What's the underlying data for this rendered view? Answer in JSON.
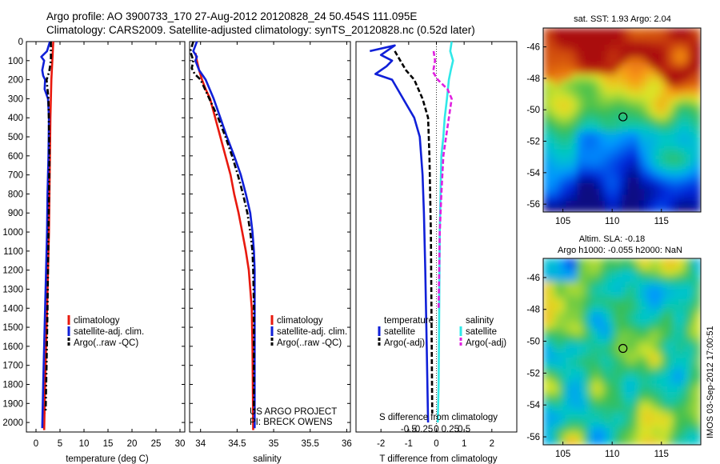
{
  "header": {
    "line1": "Argo profile: AO 3900733_170 27-Aug-2012 20120828_24 50.454S 111.095E",
    "line2": "Climatology: CARS2009. Satellite-adjusted climatology: synTS_20120828.nc (0.52d later)"
  },
  "colors": {
    "climatology": "#e8190e",
    "satellite": "#1020d8",
    "argo": "#000000",
    "satellite_salinity": "#30e8e8",
    "argo_salinity_adj": "#e020e0"
  },
  "depth_axis": {
    "range": [
      0,
      2050
    ],
    "ticks": [
      0,
      100,
      200,
      300,
      400,
      500,
      600,
      700,
      800,
      900,
      1000,
      1100,
      1200,
      1300,
      1400,
      1500,
      1600,
      1700,
      1800,
      1900,
      2000
    ]
  },
  "chart_data": [
    {
      "type": "line",
      "id": "temperature",
      "xlabel": "temperature (deg C)",
      "xlim": [
        -2,
        31
      ],
      "xticks": [
        0,
        5,
        10,
        15,
        20,
        25,
        30
      ],
      "xtick_labels": [
        "0",
        "5",
        "10",
        "15",
        "20",
        "25",
        "30"
      ],
      "legend": [
        "climatology",
        "satellite-adj. clim.",
        "Argo(..raw -QC)"
      ],
      "series": [
        {
          "name": "climatology",
          "color": "red",
          "dash": "solid",
          "x": [
            3.6,
            3.5,
            3.4,
            3.2,
            3.1,
            3.0,
            2.9,
            2.8,
            2.7,
            2.5,
            2.3,
            2.1,
            1.9,
            1.7
          ],
          "y": [
            0,
            50,
            100,
            200,
            300,
            400,
            600,
            800,
            1000,
            1200,
            1400,
            1600,
            1800,
            2040
          ]
        },
        {
          "name": "satellite-adj. clim.",
          "color": "blue",
          "dash": "solid",
          "x": [
            2.9,
            2.3,
            1.1,
            1.7,
            1.3,
            1.5,
            1.9,
            1.8,
            2.5,
            2.7,
            2.6,
            2.4,
            2.3,
            2.1,
            1.9,
            1.7,
            1.5,
            1.3
          ],
          "y": [
            0,
            50,
            80,
            100,
            150,
            180,
            200,
            250,
            300,
            400,
            600,
            800,
            1000,
            1200,
            1400,
            1600,
            1800,
            2030
          ]
        },
        {
          "name": "Argo(..raw -QC)",
          "color": "black",
          "dash": "dashdot",
          "x": [
            3.1,
            3.1,
            2.8,
            2.5,
            2.2,
            2.6,
            2.8,
            2.6,
            2.4,
            2.2,
            2.0
          ],
          "y": [
            0,
            100,
            150,
            180,
            200,
            300,
            600,
            1000,
            1400,
            1700,
            1950
          ]
        }
      ]
    },
    {
      "type": "line",
      "id": "salinity",
      "xlabel": "salinity",
      "xlim": [
        33.85,
        36.05
      ],
      "xticks": [
        34,
        34.5,
        35,
        35.5,
        36
      ],
      "xtick_labels": [
        "34",
        "34.5",
        "35",
        "35.5",
        "36"
      ],
      "legend": [
        "climatology",
        "satellite-adj. clim.",
        "Argo(..raw -QC)"
      ],
      "series": [
        {
          "name": "climatology",
          "color": "red",
          "dash": "solid",
          "x": [
            33.93,
            33.95,
            33.98,
            34.02,
            34.07,
            34.13,
            34.2,
            34.27,
            34.34,
            34.41,
            34.46,
            34.52,
            34.57,
            34.62,
            34.66,
            34.7,
            34.71,
            34.72
          ],
          "y": [
            60,
            100,
            150,
            200,
            250,
            300,
            400,
            500,
            600,
            700,
            800,
            900,
            1000,
            1100,
            1200,
            1400,
            1600,
            2040
          ]
        },
        {
          "name": "satellite-adj. clim.",
          "color": "blue",
          "dash": "solid",
          "x": [
            33.95,
            33.9,
            33.95,
            33.93,
            33.98,
            34.07,
            34.18,
            34.27,
            34.36,
            34.46,
            34.55,
            34.62,
            34.68,
            34.71,
            34.73,
            34.74,
            34.74,
            34.74
          ],
          "y": [
            0,
            50,
            80,
            100,
            150,
            200,
            300,
            400,
            500,
            600,
            700,
            800,
            900,
            1000,
            1100,
            1200,
            1400,
            2030
          ]
        },
        {
          "name": "Argo(..raw -QC)",
          "color": "black",
          "dash": "dashdot",
          "x": [
            33.9,
            33.86,
            33.9,
            33.88,
            33.92,
            34.0,
            34.12,
            34.24,
            34.34,
            34.43,
            34.51,
            34.58,
            34.64,
            34.68,
            34.71,
            34.72,
            34.73,
            34.73
          ],
          "y": [
            0,
            50,
            100,
            140,
            170,
            200,
            300,
            400,
            500,
            600,
            700,
            800,
            900,
            1000,
            1100,
            1200,
            1400,
            1950
          ]
        }
      ],
      "annotation": [
        "US ARGO PROJECT",
        "PI: BRECK OWENS"
      ]
    },
    {
      "type": "line",
      "id": "differences",
      "xlabel": "T difference from climatology",
      "xlabel_top": "S difference from climatology",
      "xlim": [
        -2.9,
        2.9
      ],
      "xticks": [
        -2,
        -1,
        0,
        1,
        2
      ],
      "xtick_labels": [
        "-2",
        "-1",
        "0",
        "1",
        "2"
      ],
      "sticks": [
        -1,
        -0.5,
        0,
        0.5,
        1
      ],
      "stick_labels": [
        "-0.5",
        "-0.25",
        "0",
        "0.25",
        "0.5"
      ],
      "legend_temperature": {
        "title": "temperature",
        "items": [
          "satellite",
          "Argo(-adj)"
        ]
      },
      "legend_salinity": {
        "title": "salinity",
        "items": [
          "satellite",
          "Argo(-adj)"
        ]
      },
      "series": [
        {
          "name": "temperature satellite",
          "color": "blue",
          "dash": "solid",
          "x": [
            -2.4,
            -1.5,
            -2.0,
            -1.6,
            -1.8,
            -2.2,
            -1.6,
            -1.2,
            -0.8,
            -0.6,
            -0.5,
            -0.45,
            -0.4,
            -0.35,
            -0.3
          ],
          "y": [
            50,
            20,
            70,
            100,
            130,
            170,
            200,
            300,
            400,
            500,
            700,
            900,
            1200,
            1600,
            2000
          ]
        },
        {
          "name": "temperature Argo(-adj)",
          "color": "black",
          "dash": "dashed",
          "x": [
            -1.5,
            -1.3,
            -1.1,
            -0.8,
            -0.5,
            -0.3,
            -0.25,
            -0.2,
            -0.15
          ],
          "y": [
            50,
            100,
            150,
            200,
            300,
            400,
            600,
            1000,
            1950
          ]
        },
        {
          "name": "salinity satellite",
          "color": "cyan",
          "dash": "solid",
          "x": [
            0.55,
            0.5,
            0.6,
            0.52,
            0.45,
            0.38,
            0.3,
            0.25,
            0.18,
            0.15,
            0.12,
            0.1,
            0.08,
            0.05
          ],
          "y": [
            0,
            50,
            100,
            150,
            200,
            300,
            400,
            500,
            600,
            800,
            1000,
            1400,
            1800,
            2000
          ]
        },
        {
          "name": "salinity Argo(-adj)",
          "color": "magenta",
          "dash": "dashed",
          "x": [
            -0.1,
            -0.05,
            -0.12,
            0.05,
            0.4,
            0.55,
            0.45,
            0.35,
            0.25,
            0.18,
            0.12,
            0.08
          ],
          "y": [
            50,
            100,
            160,
            200,
            250,
            300,
            400,
            500,
            600,
            800,
            1000,
            1400
          ]
        }
      ]
    },
    {
      "type": "heatmap",
      "id": "sst_map",
      "title": "sat. SST: 1.93 Argo: 2.04",
      "xlim": [
        103,
        119
      ],
      "ylim": [
        -56.5,
        -44.8
      ],
      "xticks": [
        105,
        110,
        115
      ],
      "yticks": [
        -46,
        -48,
        -50,
        -52,
        -54,
        -56
      ],
      "marker": {
        "lon": 111.1,
        "lat": -50.45
      }
    },
    {
      "type": "heatmap",
      "id": "sla_map",
      "title_line1": "Altim. SLA: -0.18",
      "title_line2": "Argo h1000: -0.055 h2000: NaN",
      "xlim": [
        103,
        119
      ],
      "ylim": [
        -56.5,
        -44.8
      ],
      "xticks": [
        105,
        110,
        115
      ],
      "yticks": [
        -46,
        -48,
        -50,
        -52,
        -54,
        -56
      ],
      "marker": {
        "lon": 111.1,
        "lat": -50.45
      }
    }
  ],
  "credit": "IMOS 03-Sep-2012 17:00:51"
}
